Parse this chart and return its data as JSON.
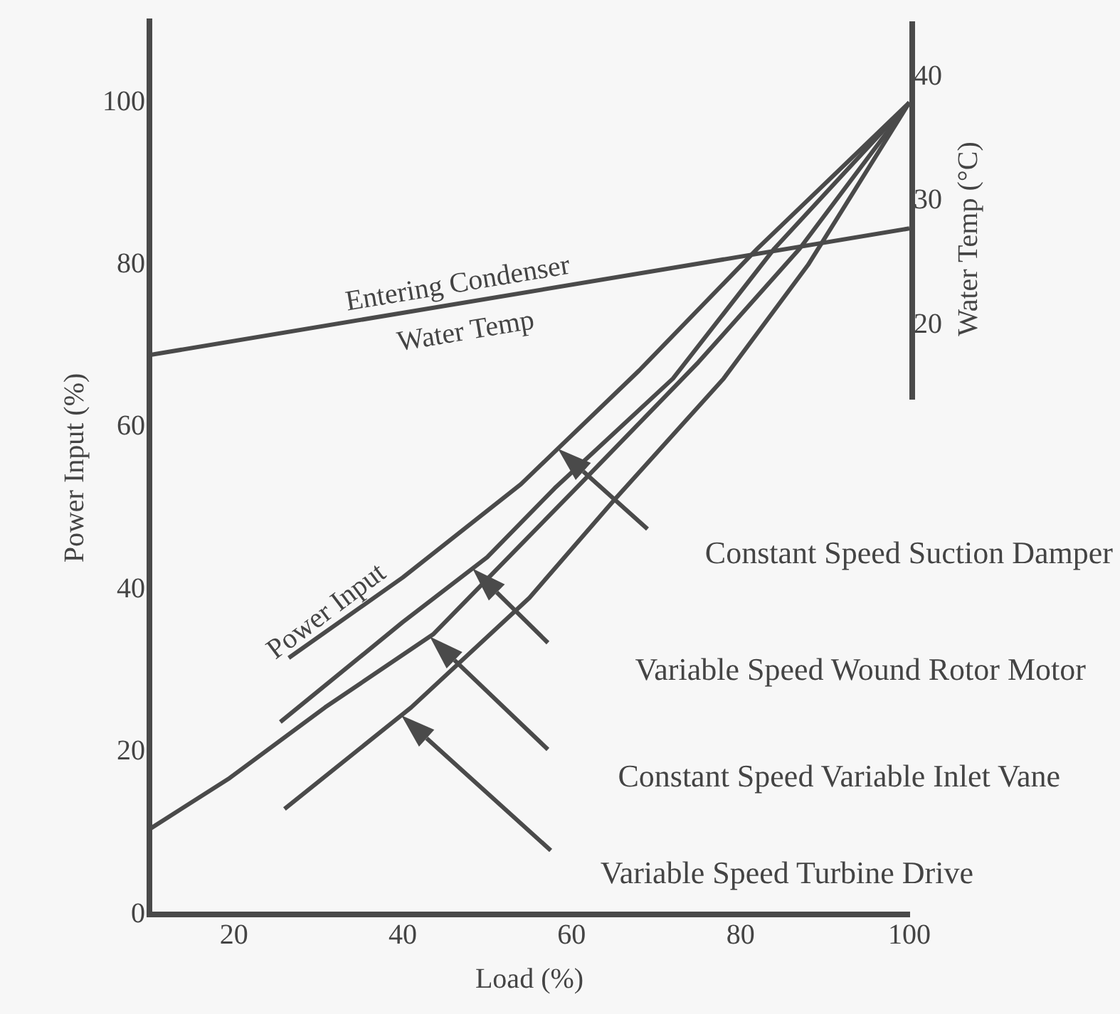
{
  "chart_data": {
    "type": "line",
    "xlabel": "Load (%)",
    "ylabel": "Power Input (%)",
    "y2label": "Water Temp (°C)",
    "xlim": [
      10,
      100
    ],
    "xticks": [
      20,
      40,
      60,
      80,
      100
    ],
    "ylim": [
      0,
      110
    ],
    "yticks": [
      0,
      20,
      40,
      60,
      80,
      100
    ],
    "y2lim": [
      -27.5,
      44.5
    ],
    "y2ticks": [
      20,
      30,
      40
    ],
    "grid": false,
    "legend": false,
    "marker": "none",
    "line_style": "solid",
    "series": [
      {
        "color": "#4a4a4a",
        "x": [
          26.5,
          40,
          54,
          68,
          82,
          100
        ],
        "values": [
          31.6,
          41.5,
          53,
          67,
          82,
          100
        ]
      },
      {
        "color": "#4a4a4a",
        "x": [
          25.5,
          40,
          50,
          58,
          72,
          84,
          100
        ],
        "values": [
          23.7,
          36,
          44,
          52.5,
          66,
          82,
          100
        ]
      },
      {
        "color": "#4a4a4a",
        "x": [
          10,
          19.5,
          30.8,
          43.6,
          61,
          75,
          87,
          100
        ],
        "values": [
          10.5,
          16.8,
          25.5,
          34.5,
          53,
          68,
          82,
          100
        ]
      },
      {
        "color": "#4a4a4a",
        "x": [
          26,
          41,
          55,
          65,
          78,
          88,
          100
        ],
        "values": [
          13,
          25.5,
          39,
          51,
          66,
          80,
          100
        ]
      },
      {
        "name": "Entering Condenser Water Temp",
        "color": "#4a4a4a",
        "axis": "y2",
        "x": [
          10,
          100
        ],
        "values": [
          17.6,
          27.8
        ]
      }
    ],
    "annotations": [
      "Power Input",
      "Constant Speed Suction Damper",
      "Variable Speed Wound Rotor Motor",
      "Constant Speed Variable Inlet Vane",
      "Variable Speed Turbine Drive"
    ]
  }
}
